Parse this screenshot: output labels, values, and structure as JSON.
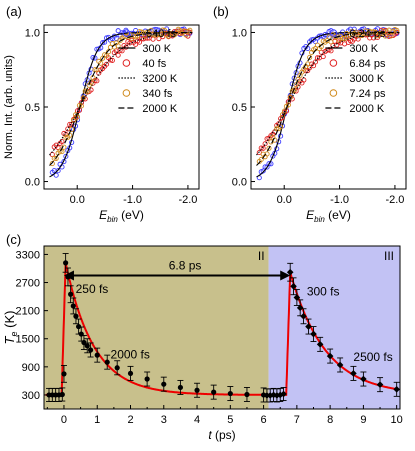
{
  "chart_data": [
    {
      "panel_label": "(a)",
      "type": "scatter",
      "xlabel_main": "E",
      "xlabel_sub": "bin",
      "xlabel_unit": " (eV)",
      "ylabel": "Norm. Int. (arb. units)",
      "x_ticks": [
        "0.0",
        "-1.0",
        "-2.0"
      ],
      "x_tick_values": [
        0,
        -1,
        -2
      ],
      "y_ticks": [
        "0.0",
        "0.5",
        "1.0"
      ],
      "y_tick_values": [
        0,
        0.5,
        1
      ],
      "xlim": [
        0.6,
        -2.2
      ],
      "ylim": [
        -0.05,
        1.05
      ],
      "legend": [
        {
          "kind": "marker",
          "label": "-540 fs",
          "color": "#3a3aff"
        },
        {
          "kind": "solid",
          "label": "300 K"
        },
        {
          "kind": "marker",
          "label": "40 fs",
          "color": "#e02020"
        },
        {
          "kind": "dotted",
          "label": "3200 K"
        },
        {
          "kind": "marker",
          "label": "340 fs",
          "color": "#d08a1c"
        },
        {
          "kind": "dashed",
          "label": "2000 K"
        }
      ],
      "series": [
        {
          "color": "#3a3aff",
          "temperature_K": 300,
          "line": "solid"
        },
        {
          "color": "#e02020",
          "temperature_K": 3200,
          "line": "dotted"
        },
        {
          "color": "#d08a1c",
          "temperature_K": 2000,
          "line": "dashed"
        }
      ]
    },
    {
      "panel_label": "(b)",
      "type": "scatter",
      "xlabel_main": "E",
      "xlabel_sub": "bin",
      "xlabel_unit": " (eV)",
      "x_ticks": [
        "0.0",
        "-1.0",
        "-2.0"
      ],
      "x_tick_values": [
        0,
        -1,
        -2
      ],
      "y_ticks": [
        "0.0",
        "0.5",
        "1.0"
      ],
      "y_tick_values": [
        0,
        0.5,
        1
      ],
      "xlim": [
        0.6,
        -2.2
      ],
      "ylim": [
        -0.05,
        1.05
      ],
      "legend": [
        {
          "kind": "marker",
          "label": "6.24 ps",
          "color": "#3a3aff"
        },
        {
          "kind": "solid",
          "label": "300 K"
        },
        {
          "kind": "marker",
          "label": "6.84 ps",
          "color": "#e02020"
        },
        {
          "kind": "dotted",
          "label": "3000 K"
        },
        {
          "kind": "marker",
          "label": "7.24 ps",
          "color": "#d08a1c"
        },
        {
          "kind": "dashed",
          "label": "2000 K"
        }
      ],
      "series": [
        {
          "color": "#3a3aff",
          "temperature_K": 300,
          "line": "solid"
        },
        {
          "color": "#e02020",
          "temperature_K": 3000,
          "line": "dotted"
        },
        {
          "color": "#d08a1c",
          "temperature_K": 2000,
          "line": "dashed"
        }
      ]
    },
    {
      "panel_label": "(c)",
      "type": "line",
      "xlabel": "t (ps)",
      "ylabel_main": "T",
      "ylabel_sub": "e",
      "ylabel_unit": " (K)",
      "x_ticks": [
        "0",
        "1",
        "2",
        "3",
        "4",
        "5",
        "6",
        "7",
        "8",
        "9",
        "10"
      ],
      "x_tick_values": [
        0,
        1,
        2,
        3,
        4,
        5,
        6,
        7,
        8,
        9,
        10
      ],
      "y_ticks": [
        "300",
        "900",
        "1500",
        "2100",
        "2700",
        "3300"
      ],
      "y_tick_values": [
        300,
        900,
        1500,
        2100,
        2700,
        3300
      ],
      "xlim": [
        -0.6,
        10.1
      ],
      "ylim": [
        0,
        3480
      ],
      "regions": [
        {
          "label": "II",
          "x_range": [
            -0.6,
            6.15
          ],
          "color": "#c8c08c"
        },
        {
          "label": "III",
          "x_range": [
            6.15,
            10.1
          ],
          "color": "#c2c2f4"
        }
      ],
      "separation_label": "6.8 ps",
      "separation_x": [
        0.0,
        6.8
      ],
      "separation_y": 2850,
      "annotations": [
        {
          "text": "250 fs",
          "x": 0.35,
          "y": 2480
        },
        {
          "text": "2000 fs",
          "x": 1.4,
          "y": 1080
        },
        {
          "text": "300 fs",
          "x": 7.3,
          "y": 2420
        },
        {
          "text": "2500 fs",
          "x": 8.7,
          "y": 1020
        }
      ],
      "fit_color": "#ee0000",
      "series": [
        {
          "name": "",
          "marker": "circle",
          "x": [
            -0.45,
            -0.35,
            -0.25,
            -0.15,
            -0.05,
            0.0,
            0.05,
            0.12,
            0.2,
            0.28,
            0.36,
            0.44,
            0.52,
            0.6,
            0.7,
            0.8,
            1.0,
            1.3,
            1.6,
            2.0,
            2.5,
            3.0,
            3.5,
            4.0,
            4.5,
            5.0,
            5.5,
            6.0
          ],
          "y": [
            300,
            300,
            300,
            300,
            310,
            750,
            3120,
            2820,
            2450,
            2200,
            1980,
            1760,
            1600,
            1420,
            1350,
            1260,
            1150,
            1000,
            880,
            760,
            640,
            530,
            460,
            400,
            360,
            330,
            310,
            300
          ],
          "err": [
            140,
            140,
            140,
            140,
            140,
            180,
            200,
            190,
            180,
            170,
            160,
            160,
            150,
            150,
            150,
            150,
            150,
            150,
            150,
            150,
            150,
            150,
            150,
            150,
            150,
            150,
            150,
            150
          ]
        },
        {
          "name": "",
          "marker": "diamond",
          "x": [
            6.1,
            6.2,
            6.3,
            6.4,
            6.5,
            6.6,
            6.8,
            6.9,
            7.0,
            7.1,
            7.2,
            7.35,
            7.5,
            7.7,
            8.0,
            8.3,
            8.7,
            9.0,
            9.5,
            10.0
          ],
          "y": [
            290,
            290,
            300,
            290,
            300,
            320,
            2920,
            2620,
            2380,
            2160,
            1980,
            1760,
            1600,
            1380,
            1130,
            940,
            760,
            640,
            520,
            420
          ],
          "err": [
            140,
            140,
            140,
            140,
            140,
            140,
            190,
            180,
            170,
            170,
            160,
            160,
            160,
            150,
            150,
            150,
            150,
            150,
            150,
            150
          ]
        }
      ]
    }
  ]
}
